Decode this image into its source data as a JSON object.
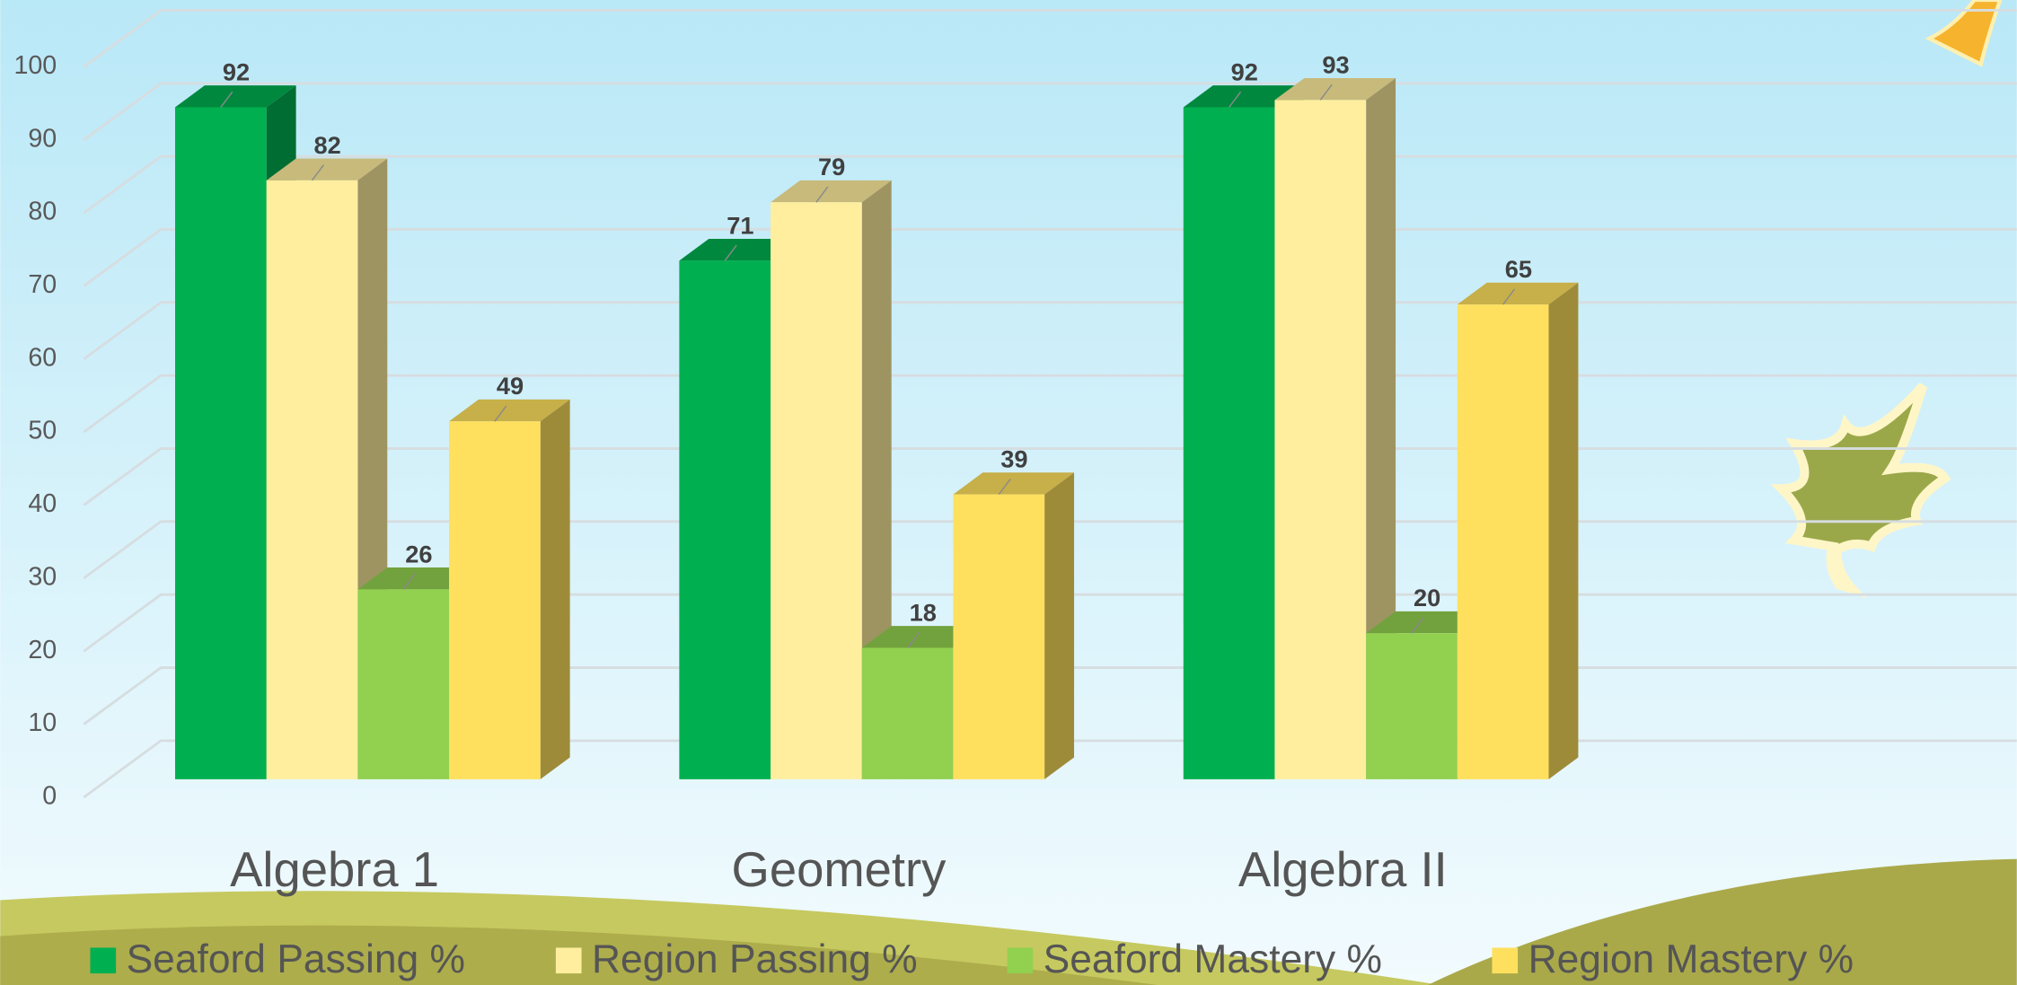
{
  "chart_data": {
    "type": "bar3d",
    "categories": [
      "Algebra 1",
      "Geometry",
      "Algebra II"
    ],
    "series": [
      {
        "name": "Seaford Passing %",
        "color": "#00b050",
        "values": [
          92,
          71,
          92
        ]
      },
      {
        "name": "Region Passing %",
        "color": "#ffee9e",
        "values": [
          82,
          79,
          93
        ]
      },
      {
        "name": "Seaford Mastery %",
        "color": "#92d050",
        "values": [
          26,
          18,
          20
        ]
      },
      {
        "name": "Region Mastery %",
        "color": "#ffe05e",
        "values": [
          49,
          39,
          65
        ]
      }
    ],
    "ylim": [
      0,
      100
    ],
    "yticks": [
      0,
      10,
      20,
      30,
      40,
      50,
      60,
      70,
      80,
      90,
      100
    ],
    "grid": true,
    "legend": "bottom"
  }
}
